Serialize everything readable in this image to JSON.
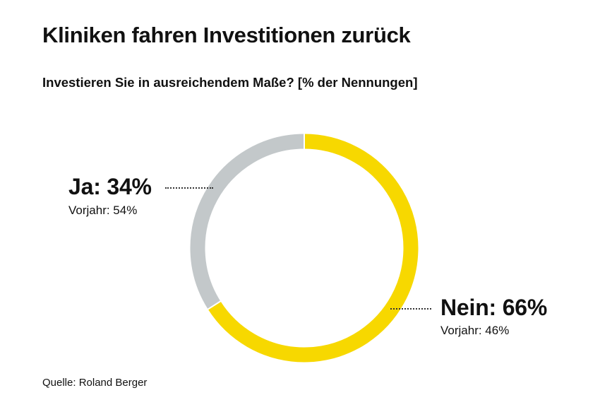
{
  "title": "Kliniken fahren Investitionen zurück",
  "subtitle": "Investieren Sie in ausreichendem Maße? [% der Nennungen]",
  "source": "Quelle: Roland Berger",
  "chart_data": {
    "type": "pie",
    "variant": "donut",
    "title": "Kliniken fahren Investitionen zurück",
    "subtitle": "Investieren Sie in ausreichendem Maße? [% der Nennungen]",
    "unit": "%",
    "slices": [
      {
        "label": "Nein: 66%",
        "category": "Nein",
        "value": 66,
        "previous_label": "Vorjahr: 46%",
        "previous_value": 46,
        "color": "#f7d800"
      },
      {
        "label": "Ja: 34%",
        "category": "Ja",
        "value": 34,
        "previous_label": "Vorjahr: 54%",
        "previous_value": 54,
        "color": "#c3c8ca"
      }
    ],
    "start_angle_deg": 0,
    "direction": "clockwise",
    "legend": "none"
  }
}
